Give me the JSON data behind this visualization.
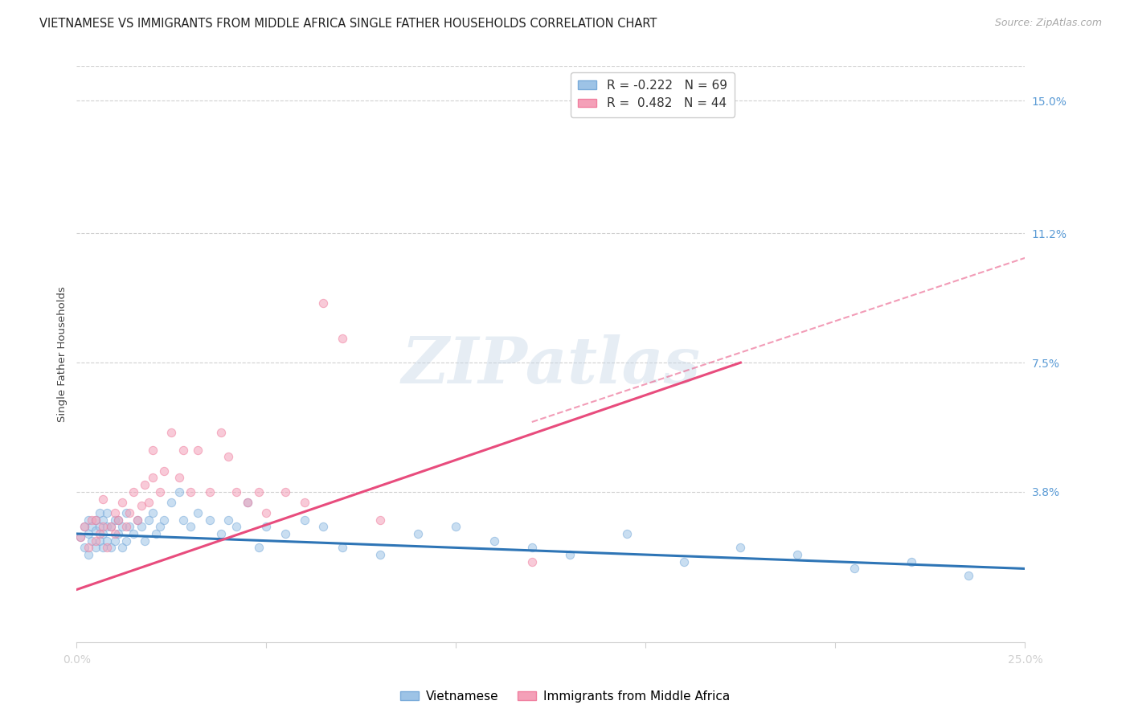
{
  "title": "VIETNAMESE VS IMMIGRANTS FROM MIDDLE AFRICA SINGLE FATHER HOUSEHOLDS CORRELATION CHART",
  "source": "Source: ZipAtlas.com",
  "ylabel": "Single Father Households",
  "xmin": 0.0,
  "xmax": 0.25,
  "ymin": -0.005,
  "ymax": 0.16,
  "ytick_vals": [
    0.0,
    0.038,
    0.075,
    0.112,
    0.15
  ],
  "ytick_labels": [
    "",
    "3.8%",
    "7.5%",
    "11.2%",
    "15.0%"
  ],
  "xtick_vals": [
    0.0,
    0.05,
    0.1,
    0.15,
    0.2,
    0.25
  ],
  "xtick_labels": [
    "0.0%",
    "",
    "",
    "",
    "",
    "25.0%"
  ],
  "legend_entries": [
    {
      "label": "Vietnamese",
      "R": "-0.222",
      "N": "69"
    },
    {
      "label": "Immigrants from Middle Africa",
      "R": "0.482",
      "N": "44"
    }
  ],
  "blue_scatter_x": [
    0.001,
    0.002,
    0.002,
    0.003,
    0.003,
    0.003,
    0.004,
    0.004,
    0.005,
    0.005,
    0.005,
    0.006,
    0.006,
    0.006,
    0.007,
    0.007,
    0.007,
    0.008,
    0.008,
    0.008,
    0.009,
    0.009,
    0.01,
    0.01,
    0.011,
    0.011,
    0.012,
    0.012,
    0.013,
    0.013,
    0.014,
    0.015,
    0.016,
    0.017,
    0.018,
    0.019,
    0.02,
    0.021,
    0.022,
    0.023,
    0.025,
    0.027,
    0.028,
    0.03,
    0.032,
    0.035,
    0.038,
    0.04,
    0.042,
    0.045,
    0.048,
    0.05,
    0.055,
    0.06,
    0.065,
    0.07,
    0.08,
    0.09,
    0.1,
    0.11,
    0.12,
    0.13,
    0.145,
    0.16,
    0.175,
    0.19,
    0.205,
    0.22,
    0.235
  ],
  "blue_scatter_y": [
    0.025,
    0.022,
    0.028,
    0.02,
    0.026,
    0.03,
    0.024,
    0.028,
    0.022,
    0.027,
    0.03,
    0.024,
    0.028,
    0.032,
    0.022,
    0.026,
    0.03,
    0.024,
    0.028,
    0.032,
    0.022,
    0.028,
    0.024,
    0.03,
    0.026,
    0.03,
    0.022,
    0.028,
    0.024,
    0.032,
    0.028,
    0.026,
    0.03,
    0.028,
    0.024,
    0.03,
    0.032,
    0.026,
    0.028,
    0.03,
    0.035,
    0.038,
    0.03,
    0.028,
    0.032,
    0.03,
    0.026,
    0.03,
    0.028,
    0.035,
    0.022,
    0.028,
    0.026,
    0.03,
    0.028,
    0.022,
    0.02,
    0.026,
    0.028,
    0.024,
    0.022,
    0.02,
    0.026,
    0.018,
    0.022,
    0.02,
    0.016,
    0.018,
    0.014
  ],
  "pink_scatter_x": [
    0.001,
    0.002,
    0.003,
    0.004,
    0.005,
    0.005,
    0.006,
    0.007,
    0.007,
    0.008,
    0.009,
    0.01,
    0.01,
    0.011,
    0.012,
    0.013,
    0.014,
    0.015,
    0.016,
    0.017,
    0.018,
    0.019,
    0.02,
    0.02,
    0.022,
    0.023,
    0.025,
    0.027,
    0.028,
    0.03,
    0.032,
    0.035,
    0.038,
    0.04,
    0.042,
    0.045,
    0.048,
    0.05,
    0.055,
    0.06,
    0.065,
    0.07,
    0.08,
    0.12
  ],
  "pink_scatter_y": [
    0.025,
    0.028,
    0.022,
    0.03,
    0.024,
    0.03,
    0.026,
    0.028,
    0.036,
    0.022,
    0.028,
    0.026,
    0.032,
    0.03,
    0.035,
    0.028,
    0.032,
    0.038,
    0.03,
    0.034,
    0.04,
    0.035,
    0.042,
    0.05,
    0.038,
    0.044,
    0.055,
    0.042,
    0.05,
    0.038,
    0.05,
    0.038,
    0.055,
    0.048,
    0.038,
    0.035,
    0.038,
    0.032,
    0.038,
    0.035,
    0.092,
    0.082,
    0.03,
    0.018
  ],
  "blue_line": {
    "x0": 0.0,
    "y0": 0.026,
    "x1": 0.25,
    "y1": 0.016
  },
  "pink_solid_line": {
    "x0": 0.0,
    "y0": 0.01,
    "x1": 0.175,
    "y1": 0.075
  },
  "pink_dashed_line": {
    "x0": 0.12,
    "y0": 0.058,
    "x1": 0.25,
    "y1": 0.105
  },
  "watermark_text": "ZIPatlas",
  "bg_color": "#ffffff",
  "grid_color": "#d0d0d0",
  "blue_scatter_color": "#9dc3e6",
  "pink_scatter_color": "#f4a0b8",
  "blue_scatter_edge": "#7aabda",
  "pink_scatter_edge": "#f080a0",
  "blue_line_color": "#2e75b6",
  "pink_line_color": "#e84c7d",
  "scatter_alpha": 0.55,
  "scatter_size": 55,
  "title_fontsize": 10.5,
  "source_fontsize": 9,
  "axis_label_fontsize": 9.5,
  "tick_fontsize": 10,
  "legend_fontsize": 11,
  "right_tick_color": "#5b9bd5",
  "bottom_tick_color": "#5b9bd5"
}
